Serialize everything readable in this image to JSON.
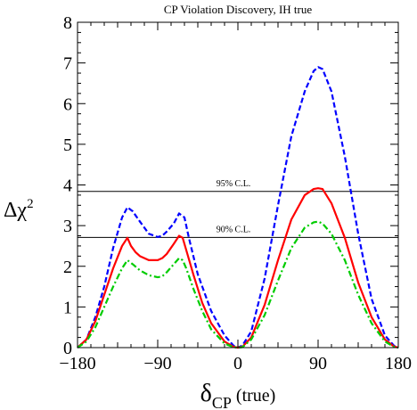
{
  "chart_data": {
    "type": "line",
    "title": "CP Violation Discovery, IH true",
    "xlabel": {
      "symbol": "δ",
      "subscript": "CP",
      "suffix": " (true)"
    },
    "ylabel": {
      "symbol": "Δχ",
      "superscript": "2"
    },
    "xlim": [
      -180,
      180
    ],
    "ylim": [
      0,
      8
    ],
    "xticks": [
      -180,
      -90,
      0,
      90,
      180
    ],
    "yticks": [
      0,
      1,
      2,
      3,
      4,
      5,
      6,
      7,
      8
    ],
    "grid": false,
    "reference_lines": [
      {
        "label": "95% C.L.",
        "y": 3.84
      },
      {
        "label": "90% C.L.",
        "y": 2.71
      }
    ],
    "series": [
      {
        "style": "dashed",
        "color": "#0000ff",
        "x": [
          -180,
          -170,
          -160,
          -150,
          -140,
          -130,
          -124,
          -118,
          -110,
          -100,
          -90,
          -85,
          -80,
          -72,
          -66,
          -60,
          -55,
          -45,
          -30,
          -15,
          -5,
          0,
          5,
          15,
          30,
          45,
          60,
          75,
          85,
          90,
          95,
          105,
          120,
          135,
          150,
          165,
          175,
          180
        ],
        "y": [
          0,
          0.2,
          0.75,
          1.5,
          2.45,
          3.2,
          3.45,
          3.35,
          3.1,
          2.8,
          2.72,
          2.75,
          2.85,
          3.05,
          3.3,
          3.2,
          2.7,
          1.8,
          0.9,
          0.3,
          0.05,
          0,
          0.05,
          0.4,
          1.7,
          3.5,
          5.2,
          6.3,
          6.8,
          6.9,
          6.85,
          6.3,
          4.7,
          2.8,
          1.2,
          0.3,
          0.05,
          0
        ]
      },
      {
        "style": "solid",
        "color": "#ff0000",
        "x": [
          -180,
          -170,
          -160,
          -150,
          -140,
          -130,
          -124,
          -120,
          -115,
          -110,
          -100,
          -90,
          -85,
          -80,
          -72,
          -66,
          -62,
          -58,
          -50,
          -40,
          -30,
          -15,
          -5,
          0,
          5,
          15,
          30,
          45,
          60,
          75,
          85,
          90,
          95,
          105,
          120,
          135,
          150,
          165,
          175,
          180
        ],
        "y": [
          0,
          0.2,
          0.65,
          1.3,
          1.95,
          2.5,
          2.7,
          2.5,
          2.35,
          2.25,
          2.15,
          2.15,
          2.2,
          2.3,
          2.55,
          2.75,
          2.7,
          2.4,
          1.8,
          1.1,
          0.6,
          0.15,
          0.02,
          0,
          0.02,
          0.25,
          1.05,
          2.15,
          3.15,
          3.75,
          3.9,
          3.92,
          3.9,
          3.55,
          2.7,
          1.6,
          0.75,
          0.2,
          0.03,
          0
        ]
      },
      {
        "style": "dashdot",
        "color": "#00cc00",
        "x": [
          -180,
          -170,
          -160,
          -150,
          -140,
          -130,
          -124,
          -118,
          -110,
          -100,
          -90,
          -85,
          -80,
          -72,
          -66,
          -62,
          -58,
          -50,
          -40,
          -30,
          -15,
          -5,
          0,
          5,
          15,
          30,
          45,
          60,
          75,
          85,
          90,
          95,
          105,
          120,
          135,
          150,
          165,
          175,
          180
        ],
        "y": [
          0,
          0.15,
          0.5,
          1.0,
          1.5,
          1.95,
          2.15,
          2.05,
          1.9,
          1.78,
          1.73,
          1.75,
          1.85,
          2.05,
          2.2,
          2.15,
          1.95,
          1.45,
          0.9,
          0.45,
          0.1,
          0.01,
          0,
          0.01,
          0.2,
          0.8,
          1.65,
          2.45,
          2.95,
          3.08,
          3.1,
          3.05,
          2.8,
          2.15,
          1.3,
          0.6,
          0.15,
          0.02,
          0
        ]
      }
    ]
  }
}
